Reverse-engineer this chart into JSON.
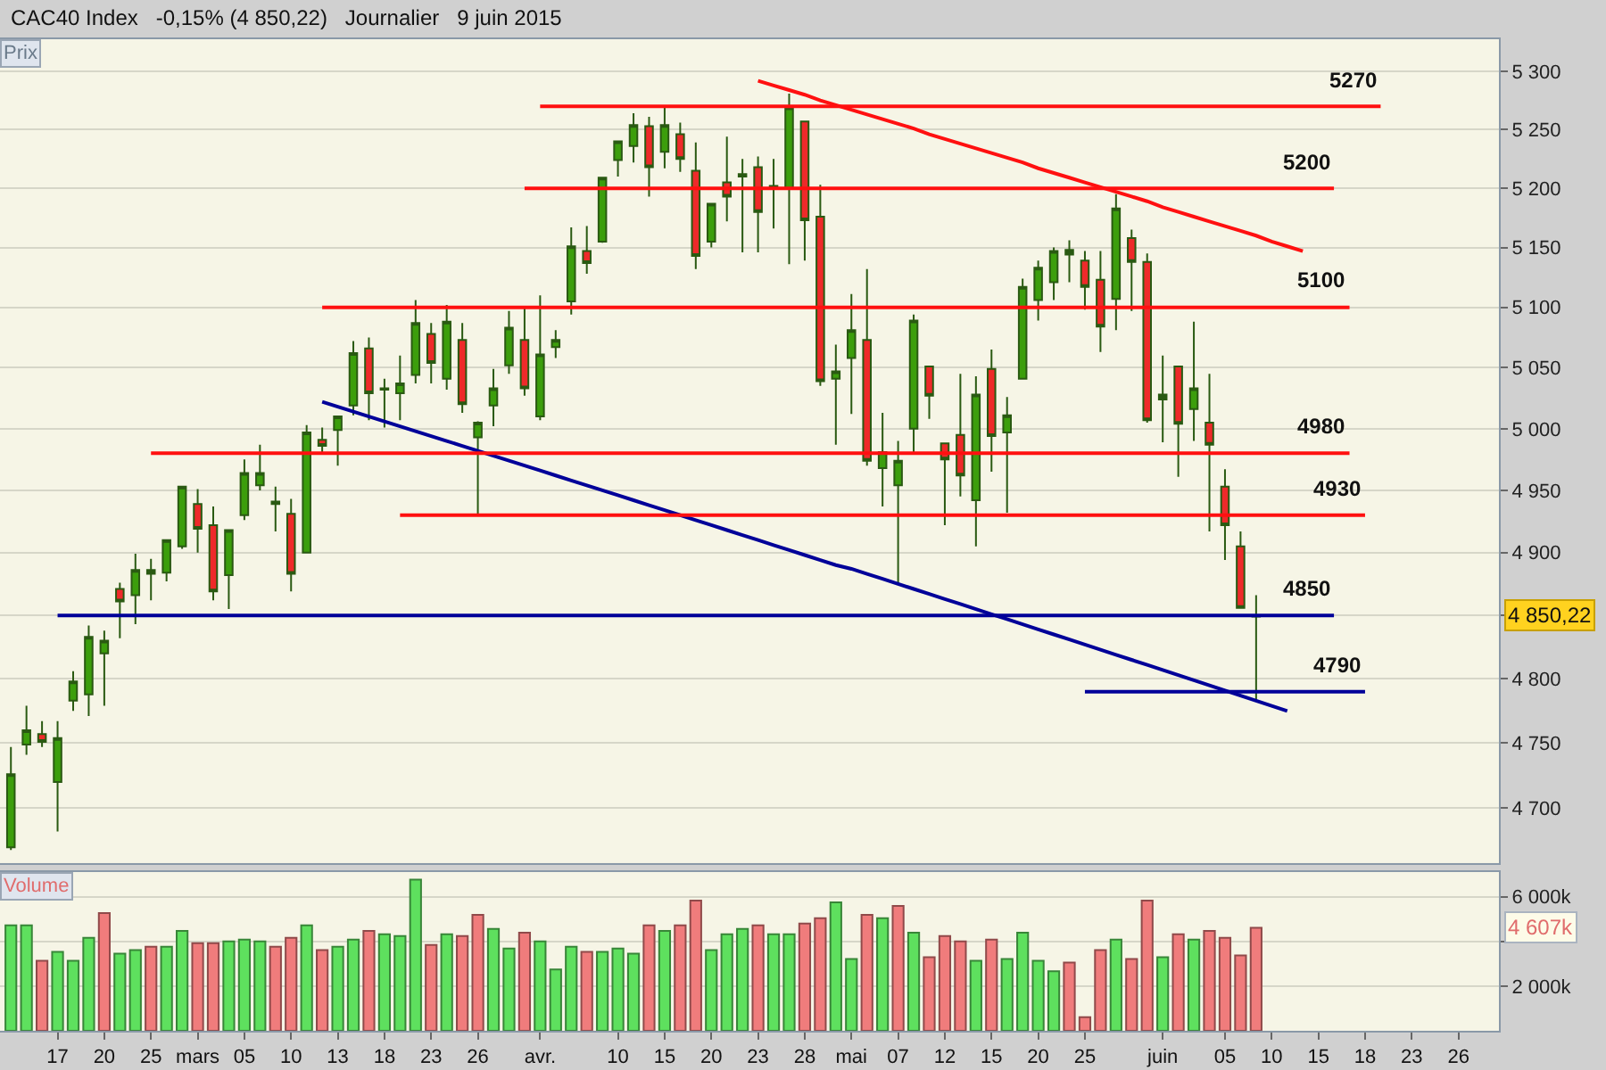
{
  "chart_data": [
    {
      "type": "candlestick",
      "title": "CAC40 Index",
      "subtitle": "-0,15% (4 850,22)   Journalier   9 juin 2015",
      "ylabel": "Prix",
      "log": true,
      "grid": "y",
      "tick_labels": "y",
      "categories": [
        null,
        null,
        null,
        null,
        null,
        null,
        null,
        null,
        null,
        null,
        null,
        null,
        null,
        null,
        null,
        null,
        null,
        null,
        null,
        null,
        null,
        null,
        null,
        null,
        null,
        null,
        null,
        null,
        null,
        null,
        null,
        null,
        null,
        null,
        null,
        null,
        null,
        null,
        null,
        null,
        null,
        null,
        null,
        null,
        null,
        null,
        null,
        null,
        null,
        null,
        null,
        null,
        null,
        null,
        null,
        null,
        null,
        null,
        null,
        null,
        null,
        null,
        null,
        null,
        null,
        null,
        null,
        null,
        null,
        null,
        null,
        null,
        null,
        null,
        null,
        null,
        null,
        null,
        null,
        null,
        null,
        null,
        null,
        null,
        null,
        null,
        null,
        null,
        null,
        null,
        null,
        null,
        null,
        null,
        null,
        null
      ],
      "ohlc": [
        [
          4670,
          4747,
          4668,
          4726
        ],
        [
          4749,
          4779,
          4741,
          4760
        ],
        [
          4757,
          4767,
          4747,
          4751
        ],
        [
          4720,
          4767,
          4682,
          4754
        ],
        [
          4783,
          4806,
          4775,
          4798
        ],
        [
          4788,
          4842,
          4771,
          4833
        ],
        [
          4820,
          4838,
          4779,
          4830
        ],
        [
          4871,
          4876,
          4832,
          4861
        ],
        [
          4866,
          4899,
          4843,
          4886
        ],
        [
          4883,
          4895,
          4862,
          4886
        ],
        [
          4884,
          4910,
          4877,
          4910
        ],
        [
          4905,
          4953,
          4903,
          4953
        ],
        [
          4939,
          4951,
          4900,
          4919
        ],
        [
          4922,
          4937,
          4862,
          4869
        ],
        [
          4882,
          4918,
          4855,
          4918
        ],
        [
          4930,
          4975,
          4926,
          4964
        ],
        [
          4954,
          4987,
          4950,
          4964
        ],
        [
          4941,
          4953,
          4917,
          4939
        ],
        [
          4931,
          4943,
          4869,
          4883
        ],
        [
          4900,
          5003,
          4900,
          4997
        ],
        [
          4991,
          5001,
          4981,
          4986
        ],
        [
          4999,
          5010,
          4970,
          5010
        ],
        [
          5019,
          5072,
          5011,
          5062
        ],
        [
          5066,
          5075,
          5007,
          5029
        ],
        [
          5032,
          5041,
          5001,
          5033
        ],
        [
          5029,
          5060,
          5007,
          5037
        ],
        [
          5044,
          5106,
          5037,
          5087
        ],
        [
          5078,
          5087,
          5037,
          5054
        ],
        [
          5041,
          5102,
          5032,
          5088
        ],
        [
          5073,
          5087,
          5013,
          5020
        ],
        [
          4993,
          5006,
          4930,
          5005
        ],
        [
          5019,
          5049,
          5002,
          5033
        ],
        [
          5052,
          5097,
          5045,
          5083
        ],
        [
          5073,
          5099,
          5027,
          5033
        ],
        [
          5010,
          5110,
          5007,
          5061
        ],
        [
          5067,
          5081,
          5058,
          5073
        ],
        [
          5105,
          5167,
          5094,
          5151
        ],
        [
          5147,
          5168,
          5128,
          5137
        ],
        [
          5155,
          5209,
          5154,
          5209
        ],
        [
          5224,
          5240,
          5210,
          5240
        ],
        [
          5236,
          5264,
          5222,
          5254
        ],
        [
          5253,
          5261,
          5193,
          5218
        ],
        [
          5231,
          5270,
          5217,
          5254
        ],
        [
          5246,
          5256,
          5214,
          5225
        ],
        [
          5215,
          5239,
          5132,
          5143
        ],
        [
          5155,
          5187,
          5150,
          5187
        ],
        [
          5205,
          5244,
          5172,
          5193
        ],
        [
          5210,
          5225,
          5146,
          5212
        ],
        [
          5218,
          5227,
          5146,
          5180
        ],
        [
          5200,
          5225,
          5166,
          5202
        ],
        [
          5200,
          5281,
          5136,
          5269
        ],
        [
          5257,
          5257,
          5139,
          5173
        ],
        [
          5176,
          5203,
          5035,
          5039
        ],
        [
          5041,
          5069,
          4987,
          5047
        ],
        [
          5058,
          5111,
          5012,
          5081
        ],
        [
          5073,
          5132,
          4970,
          4974
        ],
        [
          4968,
          5013,
          4937,
          4981
        ],
        [
          4954,
          4990,
          4875,
          4974
        ],
        [
          5000,
          5094,
          4981,
          5089
        ],
        [
          5051,
          5051,
          5008,
          5027
        ],
        [
          4988,
          4988,
          4922,
          4975
        ],
        [
          4995,
          5045,
          4945,
          4962
        ],
        [
          4942,
          5043,
          4905,
          5028
        ],
        [
          5049,
          5065,
          4965,
          4994
        ],
        [
          4997,
          5026,
          4932,
          5011
        ],
        [
          5041,
          5124,
          5041,
          5117
        ],
        [
          5106,
          5139,
          5089,
          5133
        ],
        [
          5121,
          5150,
          5106,
          5147
        ],
        [
          5148,
          5156,
          5121,
          5144
        ],
        [
          5139,
          5147,
          5098,
          5117
        ],
        [
          5123,
          5147,
          5063,
          5084
        ],
        [
          5107,
          5195,
          5081,
          5183
        ],
        [
          5158,
          5165,
          5097,
          5138
        ],
        [
          5138,
          5145,
          5005,
          5007
        ],
        [
          5028,
          5060,
          4989,
          5024
        ],
        [
          5051,
          5051,
          4961,
          5004
        ],
        [
          5016,
          5088,
          4990,
          5033
        ],
        [
          5005,
          5045,
          4917,
          4987
        ],
        [
          4953,
          4967,
          4894,
          4922
        ],
        [
          4905,
          4917,
          4856,
          4856
        ],
        [
          4849,
          4866,
          4783,
          4850.22
        ],
        null,
        null,
        null,
        null,
        null,
        null,
        null,
        null,
        null,
        null,
        null,
        null,
        null,
        null,
        null
      ],
      "colors": [
        "#3c9e0c",
        "#3c9e0c",
        "#ee2a2a",
        "#3c9e0c",
        "#3c9e0c",
        "#3c9e0c",
        "#3c9e0c",
        "#ee2a2a",
        "#3c9e0c",
        "#2a5a12",
        "#3c9e0c",
        "#3c9e0c",
        "#ee2a2a",
        "#ee2a2a",
        "#3c9e0c",
        "#3c9e0c",
        "#3c9e0c",
        "#2a5a12",
        "#ee2a2a",
        "#3c9e0c",
        "#ee2a2a",
        "#3c9e0c",
        "#3c9e0c",
        "#ee2a2a",
        "#2a5a12",
        "#3c9e0c",
        "#3c9e0c",
        "#ee2a2a",
        "#3c9e0c",
        "#ee2a2a",
        "#3c9e0c",
        "#3c9e0c",
        "#3c9e0c",
        "#ee2a2a",
        "#3c9e0c",
        "#3c9e0c",
        "#3c9e0c",
        "#ee2a2a",
        "#3c9e0c",
        "#3c9e0c",
        "#3c9e0c",
        "#ee2a2a",
        "#3c9e0c",
        "#ee2a2a",
        "#ee2a2a",
        "#3c9e0c",
        "#ee2a2a",
        "#2a5a12",
        "#ee2a2a",
        "#2a5a12",
        "#3c9e0c",
        "#ee2a2a",
        "#ee2a2a",
        "#3c9e0c",
        "#3c9e0c",
        "#ee2a2a",
        "#3c9e0c",
        "#3c9e0c",
        "#3c9e0c",
        "#ee2a2a",
        "#ee2a2a",
        "#ee2a2a",
        "#3c9e0c",
        "#ee2a2a",
        "#3c9e0c",
        "#3c9e0c",
        "#3c9e0c",
        "#3c9e0c",
        "#2a5a12",
        "#ee2a2a",
        "#ee2a2a",
        "#3c9e0c",
        "#ee2a2a",
        "#ee2a2a",
        "#2a5a12",
        "#ee2a2a",
        "#3c9e0c",
        "#ee2a2a",
        "#ee2a2a",
        "#ee2a2a",
        "#2a5a12",
        null,
        null,
        null,
        null,
        null,
        null,
        null,
        null,
        null,
        null,
        null,
        null,
        null,
        null,
        null
      ],
      "series": [
        {
          "type": "line",
          "color": "#ff1010",
          "values": [
            null,
            null,
            null,
            null,
            null,
            null,
            null,
            null,
            null,
            null,
            null,
            null,
            null,
            null,
            null,
            null,
            null,
            null,
            null,
            null,
            null,
            null,
            null,
            null,
            null,
            null,
            null,
            null,
            null,
            null,
            null,
            null,
            null,
            null,
            null,
            null,
            null,
            null,
            null,
            null,
            null,
            null,
            null,
            null,
            null,
            null,
            null,
            null,
            5292,
            5288,
            5284,
            5280,
            5275,
            5271,
            5267,
            5263,
            5259,
            5255,
            5251,
            5246,
            5242,
            5238,
            5234,
            5230,
            5226,
            5222,
            5217,
            5213,
            5209,
            5205,
            5201,
            5197,
            5193,
            5189,
            5184,
            5180,
            5176,
            5172,
            5168,
            5164,
            5160,
            5155,
            5151,
            5147,
            null,
            null,
            null,
            null,
            null,
            null,
            null,
            null,
            null,
            null,
            null,
            null
          ]
        },
        {
          "type": "line",
          "color": "#000099",
          "values": [
            null,
            null,
            null,
            null,
            null,
            null,
            null,
            null,
            null,
            null,
            null,
            null,
            null,
            null,
            null,
            null,
            null,
            null,
            null,
            null,
            5022,
            5018,
            5014,
            5010,
            5006,
            5002,
            4998,
            4994,
            4990,
            4986,
            4982,
            4978,
            4974,
            4970,
            4966,
            4962,
            4958,
            4954,
            4950,
            4946,
            4942,
            4938,
            4934,
            4930,
            4926,
            4922,
            4918,
            4914,
            4910,
            4906,
            4902,
            4898,
            4894,
            4890,
            4887,
            4883,
            4879,
            4875,
            4871,
            4867,
            4863,
            4859,
            4855,
            4851,
            4847,
            4843,
            4839,
            4835,
            4831,
            4827,
            4823,
            4819,
            4815,
            4811,
            4807,
            4803,
            4799,
            4795,
            4791,
            4787,
            4783,
            4779,
            4775,
            null,
            null,
            null,
            null,
            null,
            null,
            null,
            null,
            null,
            null,
            null,
            null,
            null
          ]
        },
        {
          "type": "line",
          "name": "5270",
          "color": "#ff1010",
          "values": [
            null,
            null,
            null,
            null,
            null,
            null,
            null,
            null,
            null,
            null,
            null,
            null,
            null,
            null,
            null,
            null,
            null,
            null,
            null,
            null,
            null,
            null,
            null,
            null,
            null,
            null,
            null,
            null,
            null,
            null,
            null,
            null,
            null,
            null,
            5270,
            5270,
            5270,
            5270,
            5270,
            5270,
            5270,
            5270,
            5270,
            5270,
            5270,
            5270,
            5270,
            5270,
            5270,
            5270,
            5270,
            5270,
            5270,
            5270,
            5270,
            5270,
            5270,
            5270,
            5270,
            5270,
            5270,
            5270,
            5270,
            5270,
            5270,
            5270,
            5270,
            5270,
            5270,
            5270,
            5270,
            5270,
            5270,
            5270,
            5270,
            5270,
            5270,
            5270,
            5270,
            5270,
            5270,
            5270,
            5270,
            5270,
            5270,
            5270,
            5270,
            5270,
            5270,
            null,
            null,
            null,
            null,
            null,
            null,
            null
          ]
        },
        {
          "type": "line",
          "name": "5200",
          "color": "#ff1010",
          "values": [
            null,
            null,
            null,
            null,
            null,
            null,
            null,
            null,
            null,
            null,
            null,
            null,
            null,
            null,
            null,
            null,
            null,
            null,
            null,
            null,
            null,
            null,
            null,
            null,
            null,
            null,
            null,
            null,
            null,
            null,
            null,
            null,
            null,
            5200,
            5200,
            5200,
            5200,
            5200,
            5200,
            5200,
            5200,
            5200,
            5200,
            5200,
            5200,
            5200,
            5200,
            5200,
            5200,
            5200,
            5200,
            5200,
            5200,
            5200,
            5200,
            5200,
            5200,
            5200,
            5200,
            5200,
            5200,
            5200,
            5200,
            5200,
            5200,
            5200,
            5200,
            5200,
            5200,
            5200,
            5200,
            5200,
            5200,
            5200,
            5200,
            5200,
            5200,
            5200,
            5200,
            5200,
            5200,
            5200,
            5200,
            5200,
            5200,
            5200,
            null,
            null,
            null,
            null,
            null,
            null,
            null,
            null,
            null,
            null
          ]
        },
        {
          "type": "line",
          "name": "5100",
          "color": "#ff1010",
          "values": [
            null,
            null,
            null,
            null,
            null,
            null,
            null,
            null,
            null,
            null,
            null,
            null,
            null,
            null,
            null,
            null,
            null,
            null,
            null,
            null,
            5100,
            5100,
            5100,
            5100,
            5100,
            5100,
            5100,
            5100,
            5100,
            5100,
            5100,
            5100,
            5100,
            5100,
            5100,
            5100,
            5100,
            5100,
            5100,
            5100,
            5100,
            5100,
            5100,
            5100,
            5100,
            5100,
            5100,
            5100,
            5100,
            5100,
            5100,
            5100,
            5100,
            5100,
            5100,
            5100,
            5100,
            5100,
            5100,
            5100,
            5100,
            5100,
            5100,
            5100,
            5100,
            5100,
            5100,
            5100,
            5100,
            5100,
            5100,
            5100,
            5100,
            5100,
            5100,
            5100,
            5100,
            5100,
            5100,
            5100,
            5100,
            5100,
            5100,
            5100,
            5100,
            5100,
            5100,
            null,
            null,
            null,
            null,
            null,
            null,
            null,
            null,
            null
          ]
        },
        {
          "type": "line",
          "name": "4980",
          "color": "#ff1010",
          "values": [
            null,
            null,
            null,
            null,
            null,
            null,
            null,
            null,
            null,
            4980,
            4980,
            4980,
            4980,
            4980,
            4980,
            4980,
            4980,
            4980,
            4980,
            4980,
            4980,
            4980,
            4980,
            4980,
            4980,
            4980,
            4980,
            4980,
            4980,
            4980,
            4980,
            4980,
            4980,
            4980,
            4980,
            4980,
            4980,
            4980,
            4980,
            4980,
            4980,
            4980,
            4980,
            4980,
            4980,
            4980,
            4980,
            4980,
            4980,
            4980,
            4980,
            4980,
            4980,
            4980,
            4980,
            4980,
            4980,
            4980,
            4980,
            4980,
            4980,
            4980,
            4980,
            4980,
            4980,
            4980,
            4980,
            4980,
            4980,
            4980,
            4980,
            4980,
            4980,
            4980,
            4980,
            4980,
            4980,
            4980,
            4980,
            4980,
            4980,
            4980,
            4980,
            4980,
            4980,
            4980,
            4980,
            null,
            null,
            null,
            null,
            null,
            null,
            null,
            null,
            null
          ]
        },
        {
          "type": "line",
          "name": "4930",
          "color": "#ff1010",
          "values": [
            null,
            null,
            null,
            null,
            null,
            null,
            null,
            null,
            null,
            null,
            null,
            null,
            null,
            null,
            null,
            null,
            null,
            null,
            null,
            null,
            null,
            null,
            null,
            null,
            null,
            4930,
            4930,
            4930,
            4930,
            4930,
            4930,
            4930,
            4930,
            4930,
            4930,
            4930,
            4930,
            4930,
            4930,
            4930,
            4930,
            4930,
            4930,
            4930,
            4930,
            4930,
            4930,
            4930,
            4930,
            4930,
            4930,
            4930,
            4930,
            4930,
            4930,
            4930,
            4930,
            4930,
            4930,
            4930,
            4930,
            4930,
            4930,
            4930,
            4930,
            4930,
            4930,
            4930,
            4930,
            4930,
            4930,
            4930,
            4930,
            4930,
            4930,
            4930,
            4930,
            4930,
            4930,
            4930,
            4930,
            4930,
            4930,
            4930,
            4930,
            4930,
            4930,
            4930,
            null,
            null,
            null,
            null,
            null,
            null,
            null,
            null
          ]
        },
        {
          "type": "line",
          "name": "4850",
          "color": "#000099",
          "values": [
            null,
            null,
            null,
            4850,
            4850,
            4850,
            4850,
            4850,
            4850,
            4850,
            4850,
            4850,
            4850,
            4850,
            4850,
            4850,
            4850,
            4850,
            4850,
            4850,
            4850,
            4850,
            4850,
            4850,
            4850,
            4850,
            4850,
            4850,
            4850,
            4850,
            4850,
            4850,
            4850,
            4850,
            4850,
            4850,
            4850,
            4850,
            4850,
            4850,
            4850,
            4850,
            4850,
            4850,
            4850,
            4850,
            4850,
            4850,
            4850,
            4850,
            4850,
            4850,
            4850,
            4850,
            4850,
            4850,
            4850,
            4850,
            4850,
            4850,
            4850,
            4850,
            4850,
            4850,
            4850,
            4850,
            4850,
            4850,
            4850,
            4850,
            4850,
            4850,
            4850,
            4850,
            4850,
            4850,
            4850,
            4850,
            4850,
            4850,
            4850,
            4850,
            4850,
            4850,
            4850,
            4850,
            null,
            null,
            null,
            null,
            null,
            null,
            null,
            null,
            null,
            null
          ]
        },
        {
          "type": "line",
          "name": "4790",
          "color": "#000099",
          "values": [
            null,
            null,
            null,
            null,
            null,
            null,
            null,
            null,
            null,
            null,
            null,
            null,
            null,
            null,
            null,
            null,
            null,
            null,
            null,
            null,
            null,
            null,
            null,
            null,
            null,
            null,
            null,
            null,
            null,
            null,
            null,
            null,
            null,
            null,
            null,
            null,
            null,
            null,
            null,
            null,
            null,
            null,
            null,
            null,
            null,
            null,
            null,
            null,
            null,
            null,
            null,
            null,
            null,
            null,
            null,
            null,
            null,
            null,
            null,
            null,
            null,
            null,
            null,
            null,
            null,
            null,
            null,
            null,
            null,
            4790,
            4790,
            4790,
            4790,
            4790,
            4790,
            4790,
            4790,
            4790,
            4790,
            4790,
            4790,
            4790,
            4790,
            4790,
            4790,
            4790,
            4790,
            4790,
            null,
            null,
            null,
            null,
            null,
            null,
            null,
            null
          ]
        }
      ],
      "ylim": [
        4658,
        5328
      ],
      "yticks": [
        {
          "value": 4700,
          "label": "4 700"
        },
        {
          "value": 4750,
          "label": "4 750"
        },
        {
          "value": 4800,
          "label": "4 800"
        },
        {
          "value": 4850,
          "label": null
        },
        {
          "value": 4900,
          "label": "4 900"
        },
        {
          "value": 4950,
          "label": "4 950"
        },
        {
          "value": 5000,
          "label": "5 000"
        },
        {
          "value": 5050,
          "label": "5 050"
        },
        {
          "value": 5100,
          "label": "5 100"
        },
        {
          "value": 5150,
          "label": "5 150"
        },
        {
          "value": 5200,
          "label": "5 200"
        },
        {
          "value": 5250,
          "label": "5 250"
        },
        {
          "value": 5300,
          "label": "5 300"
        }
      ],
      "annotations": [
        "4 850,22"
      ]
    },
    {
      "type": "bar",
      "ylabel": "Volume",
      "grid": "y",
      "categories": [
        null,
        null,
        null,
        "17",
        null,
        null,
        "20",
        null,
        null,
        "25",
        null,
        null,
        "mars",
        null,
        null,
        "05",
        null,
        null,
        "10",
        null,
        null,
        "13",
        null,
        null,
        "18",
        null,
        null,
        "23",
        null,
        null,
        "26",
        null,
        null,
        null,
        "avr.",
        null,
        null,
        null,
        null,
        "10",
        null,
        null,
        "15",
        null,
        null,
        "20",
        null,
        null,
        "23",
        null,
        null,
        "28",
        null,
        null,
        "mai",
        null,
        null,
        "07",
        null,
        null,
        "12",
        null,
        null,
        "15",
        null,
        null,
        "20",
        null,
        null,
        "25",
        null,
        null,
        null,
        null,
        "juin",
        null,
        null,
        null,
        "05",
        null,
        null,
        "10",
        null,
        null,
        "15",
        null,
        null,
        "18",
        null,
        null,
        "23",
        null,
        null,
        "26",
        null,
        null
      ],
      "values": [
        4710,
        4710,
        3130,
        3530,
        3130,
        4160,
        5260,
        3450,
        3610,
        3760,
        3760,
        4470,
        3920,
        3920,
        4000,
        4080,
        4000,
        3760,
        4160,
        4710,
        3610,
        3760,
        4080,
        4470,
        4320,
        4240,
        6760,
        3840,
        4320,
        4240,
        5180,
        4550,
        3680,
        4390,
        4000,
        2740,
        3760,
        3530,
        3530,
        3680,
        3450,
        4710,
        4470,
        4710,
        5820,
        3610,
        4320,
        4550,
        4710,
        4320,
        4320,
        4790,
        5030,
        5740,
        3210,
        5180,
        5030,
        5580,
        4390,
        3290,
        4240,
        4000,
        3130,
        4080,
        3210,
        4390,
        3130,
        2660,
        3050,
        610,
        3610,
        4080,
        3210,
        5820,
        3290,
        4320,
        4080,
        4470,
        4160,
        3370,
        4607,
        null,
        null,
        null,
        null,
        null,
        null,
        null,
        null,
        null,
        null,
        null,
        null,
        null,
        null,
        null
      ],
      "colors": [
        "#5ee05e",
        "#5ee05e",
        "#f07c7c",
        "#5ee05e",
        "#5ee05e",
        "#5ee05e",
        "#f07c7c",
        "#5ee05e",
        "#5ee05e",
        "#f07c7c",
        "#5ee05e",
        "#5ee05e",
        "#f07c7c",
        "#f07c7c",
        "#5ee05e",
        "#5ee05e",
        "#5ee05e",
        "#f07c7c",
        "#f07c7c",
        "#5ee05e",
        "#f07c7c",
        "#5ee05e",
        "#5ee05e",
        "#f07c7c",
        "#5ee05e",
        "#5ee05e",
        "#5ee05e",
        "#f07c7c",
        "#5ee05e",
        "#f07c7c",
        "#f07c7c",
        "#5ee05e",
        "#5ee05e",
        "#f07c7c",
        "#5ee05e",
        "#5ee05e",
        "#5ee05e",
        "#f07c7c",
        "#5ee05e",
        "#5ee05e",
        "#5ee05e",
        "#f07c7c",
        "#5ee05e",
        "#f07c7c",
        "#f07c7c",
        "#5ee05e",
        "#5ee05e",
        "#5ee05e",
        "#f07c7c",
        "#5ee05e",
        "#5ee05e",
        "#f07c7c",
        "#f07c7c",
        "#5ee05e",
        "#5ee05e",
        "#f07c7c",
        "#5ee05e",
        "#f07c7c",
        "#5ee05e",
        "#f07c7c",
        "#f07c7c",
        "#f07c7c",
        "#5ee05e",
        "#f07c7c",
        "#5ee05e",
        "#5ee05e",
        "#5ee05e",
        "#5ee05e",
        "#f07c7c",
        "#f07c7c",
        "#f07c7c",
        "#5ee05e",
        "#f07c7c",
        "#f07c7c",
        "#5ee05e",
        "#f07c7c",
        "#5ee05e",
        "#f07c7c",
        "#f07c7c",
        "#f07c7c",
        "#f07c7c",
        null,
        null,
        null,
        null,
        null,
        null,
        null,
        null,
        null,
        null,
        null,
        null,
        null,
        null,
        null
      ],
      "ylim": [
        0,
        7100
      ],
      "yticks": [
        {
          "value": 2000,
          "label": "2 000k"
        },
        {
          "value": 4000,
          "label": null
        },
        {
          "value": 6000,
          "label": "6 000k"
        }
      ],
      "annotations": [
        "4 607k"
      ]
    }
  ]
}
